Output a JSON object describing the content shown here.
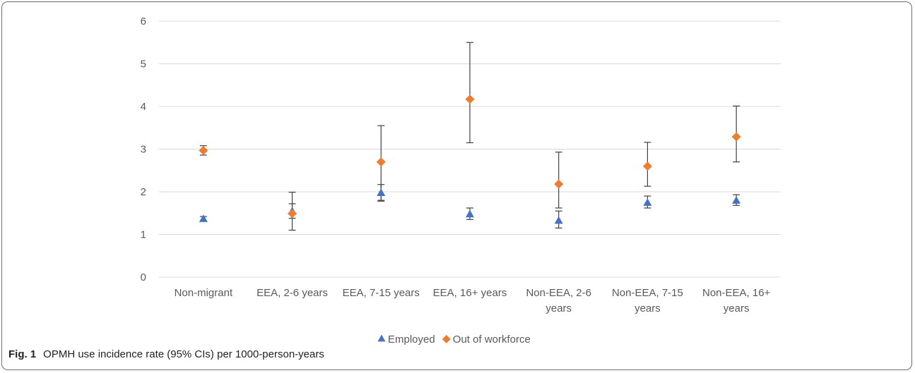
{
  "caption": {
    "label": "Fig. 1",
    "text": "OPMH use incidence rate (95% CIs) per 1000-person-years"
  },
  "chart_data": {
    "type": "scatter",
    "title": "",
    "xlabel": "",
    "ylabel": "",
    "ylim": [
      0,
      6
    ],
    "yticks": [
      0,
      1,
      2,
      3,
      4,
      5,
      6
    ],
    "grid": true,
    "legend_position": "bottom",
    "categories": [
      [
        "Non-migrant"
      ],
      [
        "EEA, 2-6 years"
      ],
      [
        "EEA, 7-15 years"
      ],
      [
        "EEA, 16+ years"
      ],
      [
        "Non-EEA, 2-6",
        "years"
      ],
      [
        "Non-EEA, 7-15",
        "years"
      ],
      [
        "Non-EEA, 16+",
        "years"
      ]
    ],
    "series": [
      {
        "name": "Employed",
        "marker": "triangle",
        "color": "#4472C4",
        "values": [
          1.37,
          1.55,
          1.98,
          1.48,
          1.33,
          1.75,
          1.8
        ],
        "ci_low": [
          1.32,
          1.38,
          1.8,
          1.35,
          1.15,
          1.62,
          1.68
        ],
        "ci_high": [
          1.42,
          1.72,
          2.17,
          1.62,
          1.55,
          1.9,
          1.93
        ]
      },
      {
        "name": "Out of workforce",
        "marker": "diamond",
        "color": "#ED7D31",
        "values": [
          2.97,
          1.49,
          2.7,
          4.17,
          2.18,
          2.6,
          3.29
        ],
        "ci_low": [
          2.86,
          1.1,
          1.78,
          3.15,
          1.62,
          2.13,
          2.7
        ],
        "ci_high": [
          3.08,
          1.99,
          3.55,
          5.5,
          2.93,
          3.16,
          4.01
        ]
      }
    ]
  }
}
